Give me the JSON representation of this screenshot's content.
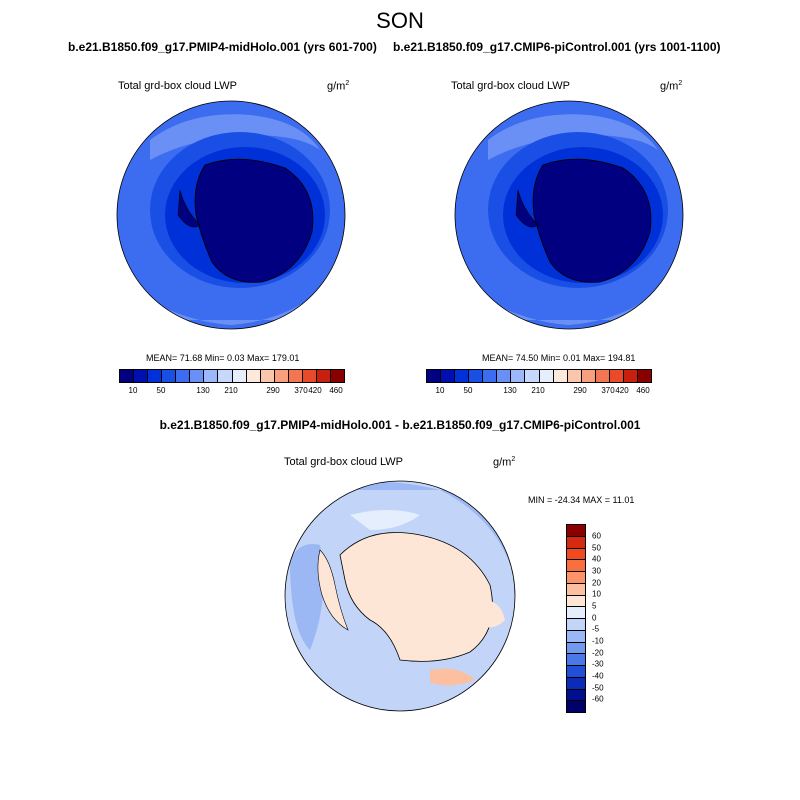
{
  "title": "SON",
  "panels": [
    {
      "case": "b.e21.B1850.f09_g17.PMIP4-midHolo.001 (yrs 601-700)",
      "variable": "Total grd-box cloud LWP",
      "units_base": "g/m",
      "units_exp": "2",
      "stats": "MEAN=  71.68  Min=   0.03  Max= 179.01"
    },
    {
      "case": "b.e21.B1850.f09_g17.CMIP6-piControl.001 (yrs 1001-1100)",
      "variable": "Total grd-box cloud LWP",
      "units_base": "g/m",
      "units_exp": "2",
      "stats": "MEAN=  74.50  Min=   0.01  Max= 194.81"
    }
  ],
  "abs_colorbar": {
    "colors": [
      "#000080",
      "#0010b0",
      "#0030d8",
      "#1a4fe6",
      "#3c6cf0",
      "#6a90f5",
      "#9cb8fa",
      "#c8d8fc",
      "#e6eefd",
      "#fde8dc",
      "#fbc7ac",
      "#f8a07e",
      "#f37652",
      "#e84a2a",
      "#c8200e",
      "#8a0000"
    ],
    "tick_labels": [
      "10",
      "50",
      "130",
      "210",
      "290",
      "370",
      "420",
      "460"
    ]
  },
  "diff": {
    "title": "b.e21.B1850.f09_g17.PMIP4-midHolo.001 - b.e21.B1850.f09_g17.CMIP6-piControl.001",
    "variable": "Total grd-box cloud LWP",
    "units_base": "g/m",
    "units_exp": "2",
    "stats": "MIN = -24.34 MAX =  11.01",
    "colors": [
      "#8a0000",
      "#d42a10",
      "#f04a20",
      "#f8703e",
      "#fb946a",
      "#fcbfa0",
      "#fde6d6",
      "#e4eefc",
      "#c2d4f8",
      "#9bb8f4",
      "#7299ee",
      "#4a78e8",
      "#2050d8",
      "#0a2cb8",
      "#00108c",
      "#00006a"
    ],
    "tick_labels": [
      "60",
      "50",
      "40",
      "30",
      "20",
      "10",
      "5",
      "0",
      "-5",
      "-10",
      "-20",
      "-30",
      "-40",
      "-50",
      "-60"
    ]
  }
}
